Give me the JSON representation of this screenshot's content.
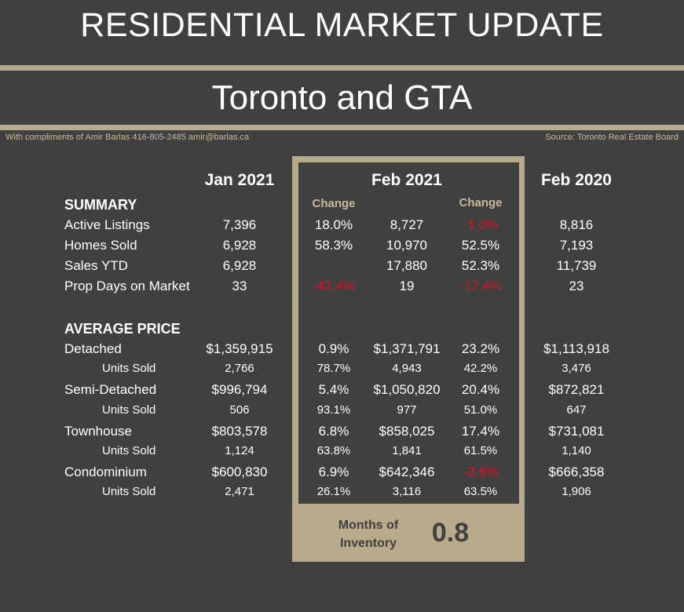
{
  "header": {
    "title": "RESIDENTIAL MARKET UPDATE",
    "subtitle": "Toronto and GTA",
    "credit": "With compliments of Amir Barlas 416-805-2485 amir@barlas.ca",
    "source": "Source: Toronto Real Estate Board"
  },
  "columns": {
    "jan2021": "Jan 2021",
    "feb2021": "Feb 2021",
    "feb2020": "Feb 2020",
    "change": "Change"
  },
  "summary": {
    "heading": "SUMMARY",
    "rows": [
      {
        "label": "Active Listings",
        "jan": "7,396",
        "chg1": "18.0%",
        "feb21": "8,727",
        "chg2": "-1.0%",
        "feb20": "8,816"
      },
      {
        "label": "Homes Sold",
        "jan": "6,928",
        "chg1": "58.3%",
        "feb21": "10,970",
        "chg2": "52.5%",
        "feb20": "7,193"
      },
      {
        "label": "Sales YTD",
        "jan": "6,928",
        "chg1": "",
        "feb21": "17,880",
        "chg2": "52.3%",
        "feb20": "11,739"
      },
      {
        "label": "Prop Days on Market",
        "jan": "33",
        "chg1": "-42.4%",
        "feb21": "19",
        "chg2": "-17.4%",
        "feb20": "23"
      }
    ]
  },
  "average_price": {
    "heading": "AVERAGE PRICE",
    "rows": [
      {
        "label": "Detached",
        "jan": "$1,359,915",
        "chg1": "0.9%",
        "feb21": "$1,371,791",
        "chg2": "23.2%",
        "feb20": "$1,113,918"
      },
      {
        "label": "Units Sold",
        "jan": "2,766",
        "chg1": "78.7%",
        "feb21": "4,943",
        "chg2": "42.2%",
        "feb20": "3,476"
      },
      {
        "label": "Semi-Detached",
        "jan": "$996,794",
        "chg1": "5.4%",
        "feb21": "$1,050,820",
        "chg2": "20.4%",
        "feb20": "$872,821"
      },
      {
        "label": "Units Sold",
        "jan": "506",
        "chg1": "93.1%",
        "feb21": "977",
        "chg2": "51.0%",
        "feb20": "647"
      },
      {
        "label": "Townhouse",
        "jan": "$803,578",
        "chg1": "6.8%",
        "feb21": "$858,025",
        "chg2": "17.4%",
        "feb20": "$731,081"
      },
      {
        "label": "Units Sold",
        "jan": "1,124",
        "chg1": "63.8%",
        "feb21": "1,841",
        "chg2": "61.5%",
        "feb20": "1,140"
      },
      {
        "label": "Condominium",
        "jan": "$600,830",
        "chg1": "6.9%",
        "feb21": "$642,346",
        "chg2": "-3.6%",
        "feb20": "$666,358"
      },
      {
        "label": "Units Sold",
        "jan": "2,471",
        "chg1": "26.1%",
        "feb21": "3,116",
        "chg2": "63.5%",
        "feb20": "1,906"
      }
    ]
  },
  "inventory": {
    "label": "Months of Inventory",
    "value": "0.8"
  },
  "colors": {
    "background": "#404040",
    "accent": "#b8aa8a",
    "negative": "#e0101a",
    "text": "#ffffff"
  }
}
